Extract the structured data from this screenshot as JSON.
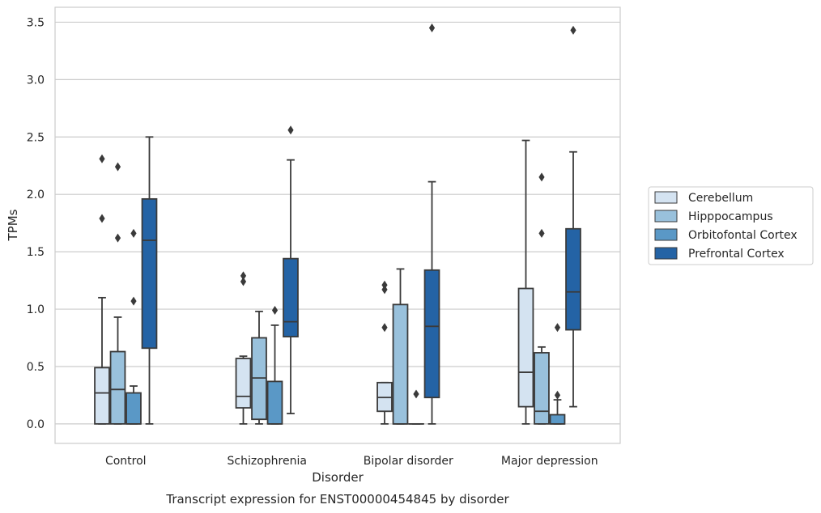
{
  "chart_data": {
    "type": "box",
    "title": "",
    "caption": "Transcript expression for ENST00000454845 by disorder",
    "xlabel": "Disorder",
    "ylabel": "TPMs",
    "ylim": [
      -0.17,
      3.63
    ],
    "yticks": [
      "0.0",
      "0.5",
      "1.0",
      "1.5",
      "2.0",
      "2.5",
      "3.0",
      "3.5"
    ],
    "grid": true,
    "legend_position": "right",
    "categories": [
      "Control",
      "Schizophrenia",
      "Bipolar disorder",
      "Major depression"
    ],
    "series": [
      {
        "name": "Cerebellum",
        "color": "#d4e3f1",
        "boxes": [
          {
            "q1": 0.0,
            "median": 0.27,
            "q3": 0.49,
            "whisker_low": 0.0,
            "whisker_high": 1.1,
            "outliers": [
              1.79,
              2.31
            ]
          },
          {
            "q1": 0.14,
            "median": 0.24,
            "q3": 0.57,
            "whisker_low": 0.0,
            "whisker_high": 0.59,
            "outliers": [
              1.24,
              1.29
            ]
          },
          {
            "q1": 0.11,
            "median": 0.23,
            "q3": 0.36,
            "whisker_low": 0.0,
            "whisker_high": 0.36,
            "outliers": [
              0.84,
              1.17,
              1.21
            ]
          },
          {
            "q1": 0.15,
            "median": 0.45,
            "q3": 1.18,
            "whisker_low": 0.0,
            "whisker_high": 2.47,
            "outliers": []
          }
        ]
      },
      {
        "name": "Hipppocampus",
        "color": "#99c1dc",
        "boxes": [
          {
            "q1": 0.0,
            "median": 0.3,
            "q3": 0.63,
            "whisker_low": 0.0,
            "whisker_high": 0.93,
            "outliers": [
              1.62,
              2.24
            ]
          },
          {
            "q1": 0.04,
            "median": 0.4,
            "q3": 0.75,
            "whisker_low": 0.0,
            "whisker_high": 0.98,
            "outliers": []
          },
          {
            "q1": 0.0,
            "median": 0.0,
            "q3": 1.04,
            "whisker_low": 0.0,
            "whisker_high": 1.35,
            "outliers": []
          },
          {
            "q1": 0.0,
            "median": 0.11,
            "q3": 0.62,
            "whisker_low": 0.0,
            "whisker_high": 0.67,
            "outliers": [
              1.66,
              2.15
            ]
          }
        ]
      },
      {
        "name": "Orbitofontal Cortex",
        "color": "#5a98c6",
        "boxes": [
          {
            "q1": 0.0,
            "median": 0.0,
            "q3": 0.27,
            "whisker_low": 0.0,
            "whisker_high": 0.33,
            "outliers": [
              1.07,
              1.66
            ]
          },
          {
            "q1": 0.0,
            "median": 0.0,
            "q3": 0.37,
            "whisker_low": 0.0,
            "whisker_high": 0.86,
            "outliers": [
              0.99
            ]
          },
          {
            "q1": 0.0,
            "median": 0.0,
            "q3": 0.0,
            "whisker_low": 0.0,
            "whisker_high": 0.0,
            "outliers": [
              0.26
            ]
          },
          {
            "q1": 0.0,
            "median": 0.0,
            "q3": 0.08,
            "whisker_low": 0.0,
            "whisker_high": 0.21,
            "outliers": [
              0.25,
              0.84
            ]
          }
        ]
      },
      {
        "name": "Prefrontal Cortex",
        "color": "#2463a5",
        "boxes": [
          {
            "q1": 0.66,
            "median": 1.6,
            "q3": 1.96,
            "whisker_low": 0.0,
            "whisker_high": 2.5,
            "outliers": []
          },
          {
            "q1": 0.76,
            "median": 0.89,
            "q3": 1.44,
            "whisker_low": 0.09,
            "whisker_high": 2.3,
            "outliers": [
              2.56
            ]
          },
          {
            "q1": 0.23,
            "median": 0.85,
            "q3": 1.34,
            "whisker_low": 0.0,
            "whisker_high": 2.11,
            "outliers": [
              3.45
            ]
          },
          {
            "q1": 0.82,
            "median": 1.15,
            "q3": 1.7,
            "whisker_low": 0.15,
            "whisker_high": 2.37,
            "outliers": [
              3.43
            ]
          }
        ]
      }
    ]
  }
}
